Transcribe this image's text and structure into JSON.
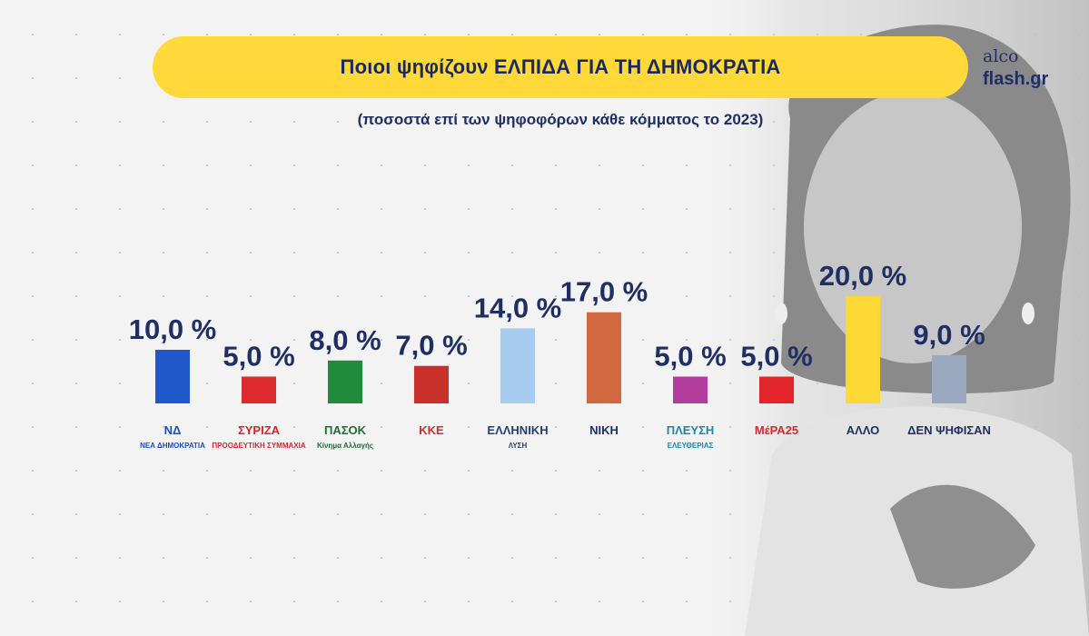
{
  "header": {
    "title": "Ποιοι ψηφίζουν ΕΛΠΙΔΑ ΓΙΑ ΤΗ ΔΗΜΟΚΡΑΤΙΑ",
    "subtitle": "(ποσοστά επί των ψηφοφόρων κάθε κόμματος το 2023)",
    "brand_line1": "alco",
    "brand_line2": "flash.gr"
  },
  "chart_data": {
    "type": "bar",
    "title": "Ποιοι ψηφίζουν ΕΛΠΙΔΑ ΓΙΑ ΤΗ ΔΗΜΟΚΡΑΤΙΑ",
    "subtitle": "(ποσοστά επί των ψηφοφόρων κάθε κόμματος το 2023)",
    "categories": [
      "ΝΔ",
      "ΣΥΡΙΖΑ",
      "ΠΑΣΟΚ",
      "ΚΚΕ",
      "ΕΛΛΗΝΙΚΗ ΛΥΣΗ",
      "ΝΙΚΗ",
      "ΠΛΕΥΣΗ ΕΛΕΥΘΕΡΙΑΣ",
      "ΜέΡΑ25",
      "ΑΛΛΟ",
      "ΔΕΝ ΨΗΦΙΣΑΝ"
    ],
    "values": [
      10.0,
      5.0,
      8.0,
      7.0,
      14.0,
      17.0,
      5.0,
      5.0,
      20.0,
      9.0
    ],
    "value_labels": [
      "10,0 %",
      "5,0 %",
      "8,0 %",
      "7,0 %",
      "14,0 %",
      "17,0 %",
      "5,0 %",
      "5,0 %",
      "20,0 %",
      "9,0 %"
    ],
    "colors": [
      "#2158c9",
      "#dc2a2f",
      "#1f8b3b",
      "#c9302c",
      "#a8ccef",
      "#d2683f",
      "#b23d9c",
      "#e3262c",
      "#fdd835",
      "#9ba9c0"
    ],
    "logo_texts": [
      {
        "main": "ΝΔ",
        "sub": "ΝΕΑ ΔΗΜΟΚΡΑΤΙΑ",
        "color": "#1a4cc6"
      },
      {
        "main": "ΣΥΡΙΖΑ",
        "sub": "ΠΡΟΟΔΕΥΤΙΚΗ ΣΥΜΜΑΧΙΑ",
        "color": "#d6262c"
      },
      {
        "main": "ΠΑΣΟΚ",
        "sub": "Κίνημα Αλλαγής",
        "color": "#1f6e34"
      },
      {
        "main": "ΚΚΕ",
        "sub": "",
        "color": "#d42a2a"
      },
      {
        "main": "ΕΛΛΗΝΙΚΗ",
        "sub": "ΛΥΣΗ",
        "color": "#22407a"
      },
      {
        "main": "ΝΙΚΗ",
        "sub": "",
        "color": "#1c2f6b"
      },
      {
        "main": "ΠΛΕΥΣΗ",
        "sub": "ΕΛΕΥΘΕΡΙΑΣ",
        "color": "#1c86a8"
      },
      {
        "main": "ΜέΡΑ25",
        "sub": "",
        "color": "#e0242b"
      },
      {
        "main": "ΑΛΛΟ",
        "sub": "",
        "color": "#1f2f63"
      },
      {
        "main": "ΔΕΝ ΨΗΦΙΣΑΝ",
        "sub": "",
        "color": "#1f2f63"
      }
    ],
    "legend": "none",
    "grid": false
  }
}
